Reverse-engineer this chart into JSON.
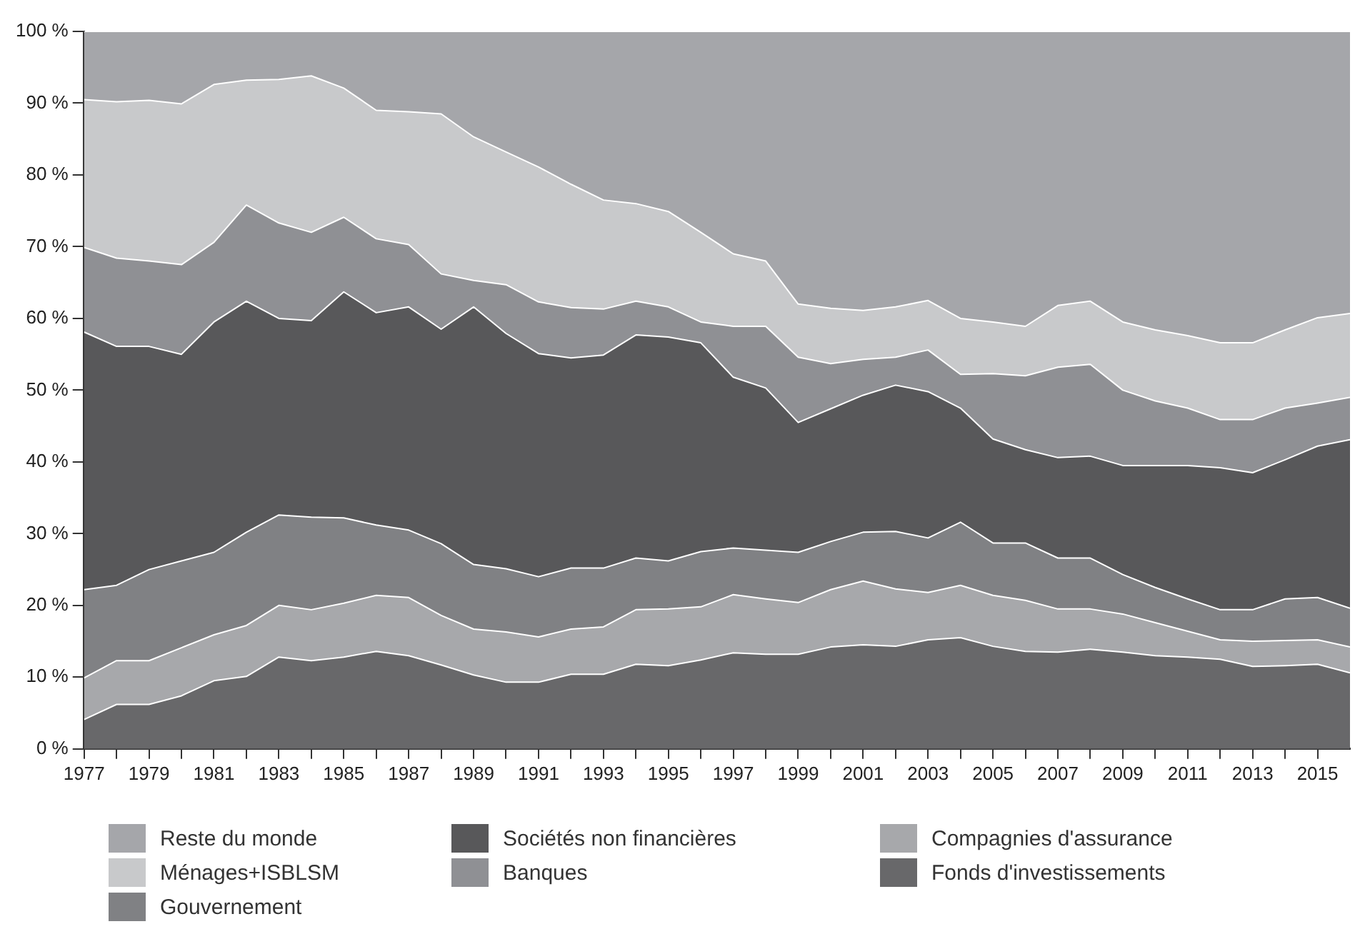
{
  "chart_data": {
    "type": "area",
    "stacked": true,
    "legend": "bottom",
    "grid": false,
    "x": [
      1977,
      1978,
      1979,
      1980,
      1981,
      1982,
      1983,
      1984,
      1985,
      1986,
      1987,
      1988,
      1989,
      1990,
      1991,
      1992,
      1993,
      1994,
      1995,
      1996,
      1997,
      1998,
      1999,
      2000,
      2001,
      2002,
      2003,
      2004,
      2005,
      2006,
      2007,
      2008,
      2009,
      2010,
      2011,
      2012,
      2013,
      2014,
      2015,
      2016
    ],
    "xlim": [
      1977,
      2016
    ],
    "xticks": [
      1977,
      {
        "value": 1978,
        "label": null
      },
      1979,
      {
        "value": 1980,
        "label": null
      },
      1981,
      {
        "value": 1982,
        "label": null
      },
      1983,
      {
        "value": 1984,
        "label": null
      },
      1985,
      {
        "value": 1986,
        "label": null
      },
      1987,
      {
        "value": 1988,
        "label": null
      },
      1989,
      {
        "value": 1990,
        "label": null
      },
      1991,
      {
        "value": 1992,
        "label": null
      },
      1993,
      {
        "value": 1994,
        "label": null
      },
      1995,
      {
        "value": 1996,
        "label": null
      },
      1997,
      {
        "value": 1998,
        "label": null
      },
      1999,
      {
        "value": 2000,
        "label": null
      },
      2001,
      {
        "value": 2002,
        "label": null
      },
      2003,
      {
        "value": 2004,
        "label": null
      },
      2005,
      {
        "value": 2006,
        "label": null
      },
      2007,
      {
        "value": 2008,
        "label": null
      },
      2009,
      {
        "value": 2010,
        "label": null
      },
      2011,
      {
        "value": 2012,
        "label": null
      },
      2013,
      {
        "value": 2014,
        "label": null
      },
      2015
    ],
    "ylim": [
      0,
      100
    ],
    "yticks": [
      {
        "value": 0,
        "label": "0 %"
      },
      {
        "value": 10,
        "label": "10 %"
      },
      {
        "value": 20,
        "label": "20 %"
      },
      {
        "value": 30,
        "label": "30 %"
      },
      {
        "value": 40,
        "label": "40 %"
      },
      {
        "value": 50,
        "label": "50 %"
      },
      {
        "value": 60,
        "label": "60 %"
      },
      {
        "value": 70,
        "label": "70 %"
      },
      {
        "value": 80,
        "label": "80 %"
      },
      {
        "value": 90,
        "label": "90 %"
      },
      {
        "value": 100,
        "label": "100 %"
      }
    ],
    "series": [
      {
        "name": "Fonds d'investissements",
        "color": "#68686a",
        "values": [
          4.1,
          6.2,
          6.2,
          7.4,
          9.5,
          10.1,
          12.8,
          12.3,
          12.8,
          13.6,
          13.0,
          11.7,
          10.3,
          9.3,
          9.3,
          10.4,
          10.4,
          11.8,
          11.6,
          12.4,
          13.4,
          13.2,
          13.2,
          14.2,
          14.5,
          14.3,
          15.2,
          15.5,
          14.3,
          13.6,
          13.5,
          13.9,
          13.5,
          13.0,
          12.8,
          12.5,
          11.5,
          11.6,
          11.8,
          10.6
        ]
      },
      {
        "name": "Compagnies d'assurance",
        "color": "#a7a8ab",
        "values": [
          5.8,
          6.1,
          6.1,
          6.7,
          6.4,
          7.1,
          7.2,
          7.1,
          7.5,
          7.8,
          8.1,
          6.9,
          6.4,
          7.0,
          6.3,
          6.3,
          6.6,
          7.6,
          7.9,
          7.4,
          8.1,
          7.7,
          7.2,
          8.0,
          8.9,
          8.0,
          6.6,
          7.3,
          7.1,
          7.1,
          6.0,
          5.6,
          5.3,
          4.6,
          3.6,
          2.7,
          3.5,
          3.5,
          3.4,
          3.6
        ]
      },
      {
        "name": "Gouvernement",
        "color": "#808184",
        "values": [
          12.3,
          10.5,
          12.7,
          12.1,
          11.5,
          13.0,
          12.6,
          12.9,
          11.9,
          9.8,
          9.4,
          10.0,
          9.0,
          8.8,
          8.4,
          8.5,
          8.2,
          7.2,
          6.7,
          7.7,
          6.5,
          6.8,
          7.0,
          6.7,
          6.8,
          8.0,
          7.6,
          8.8,
          7.3,
          8.0,
          7.1,
          7.1,
          5.5,
          4.9,
          4.5,
          4.2,
          4.4,
          5.8,
          5.9,
          5.4
        ]
      },
      {
        "name": "Sociétés non financières",
        "color": "#58585a",
        "values": [
          35.9,
          33.3,
          31.1,
          28.8,
          32.1,
          32.2,
          27.4,
          27.4,
          31.5,
          29.6,
          31.1,
          29.9,
          35.9,
          32.8,
          31.1,
          29.3,
          29.7,
          31.1,
          31.2,
          29.1,
          23.8,
          22.6,
          18.1,
          18.5,
          19.1,
          20.4,
          20.4,
          15.9,
          14.5,
          13.0,
          14.0,
          14.2,
          15.2,
          17.0,
          18.6,
          19.8,
          19.1,
          19.4,
          21.1,
          23.5
        ]
      },
      {
        "name": "Banques",
        "color": "#8f9094",
        "values": [
          11.8,
          12.3,
          11.9,
          12.5,
          11.1,
          13.4,
          13.3,
          12.3,
          10.4,
          10.3,
          8.7,
          7.7,
          3.7,
          6.8,
          7.2,
          7.0,
          6.4,
          4.7,
          4.2,
          2.9,
          7.1,
          8.6,
          9.1,
          6.3,
          5.0,
          3.9,
          5.8,
          4.7,
          9.1,
          10.3,
          12.6,
          12.8,
          10.5,
          9.0,
          8.0,
          6.7,
          7.4,
          7.2,
          6.0,
          5.9
        ]
      },
      {
        "name": "Ménages+ISBLSM",
        "color": "#c8c9cb",
        "values": [
          20.6,
          21.8,
          22.4,
          22.4,
          22.0,
          17.4,
          20.0,
          21.8,
          18.0,
          17.9,
          18.5,
          22.3,
          20.0,
          18.5,
          18.8,
          17.2,
          15.2,
          13.6,
          13.3,
          12.5,
          10.1,
          9.1,
          7.4,
          7.7,
          6.8,
          7.0,
          6.9,
          7.8,
          7.2,
          6.9,
          8.6,
          8.8,
          9.5,
          9.9,
          10.1,
          10.7,
          10.7,
          10.9,
          11.9,
          11.7
        ]
      },
      {
        "name": "Reste du monde",
        "color": "#a5a6aa",
        "values": [
          9.5,
          9.8,
          9.6,
          10.1,
          7.4,
          6.8,
          6.7,
          6.2,
          7.9,
          11.0,
          11.2,
          11.5,
          14.7,
          16.8,
          18.9,
          21.3,
          23.5,
          24.0,
          25.1,
          28.0,
          31.0,
          32.0,
          38.0,
          38.6,
          38.9,
          38.4,
          37.5,
          40.0,
          40.5,
          41.1,
          38.2,
          37.6,
          40.5,
          41.6,
          42.4,
          43.4,
          43.4,
          41.6,
          39.9,
          39.3
        ]
      }
    ]
  }
}
